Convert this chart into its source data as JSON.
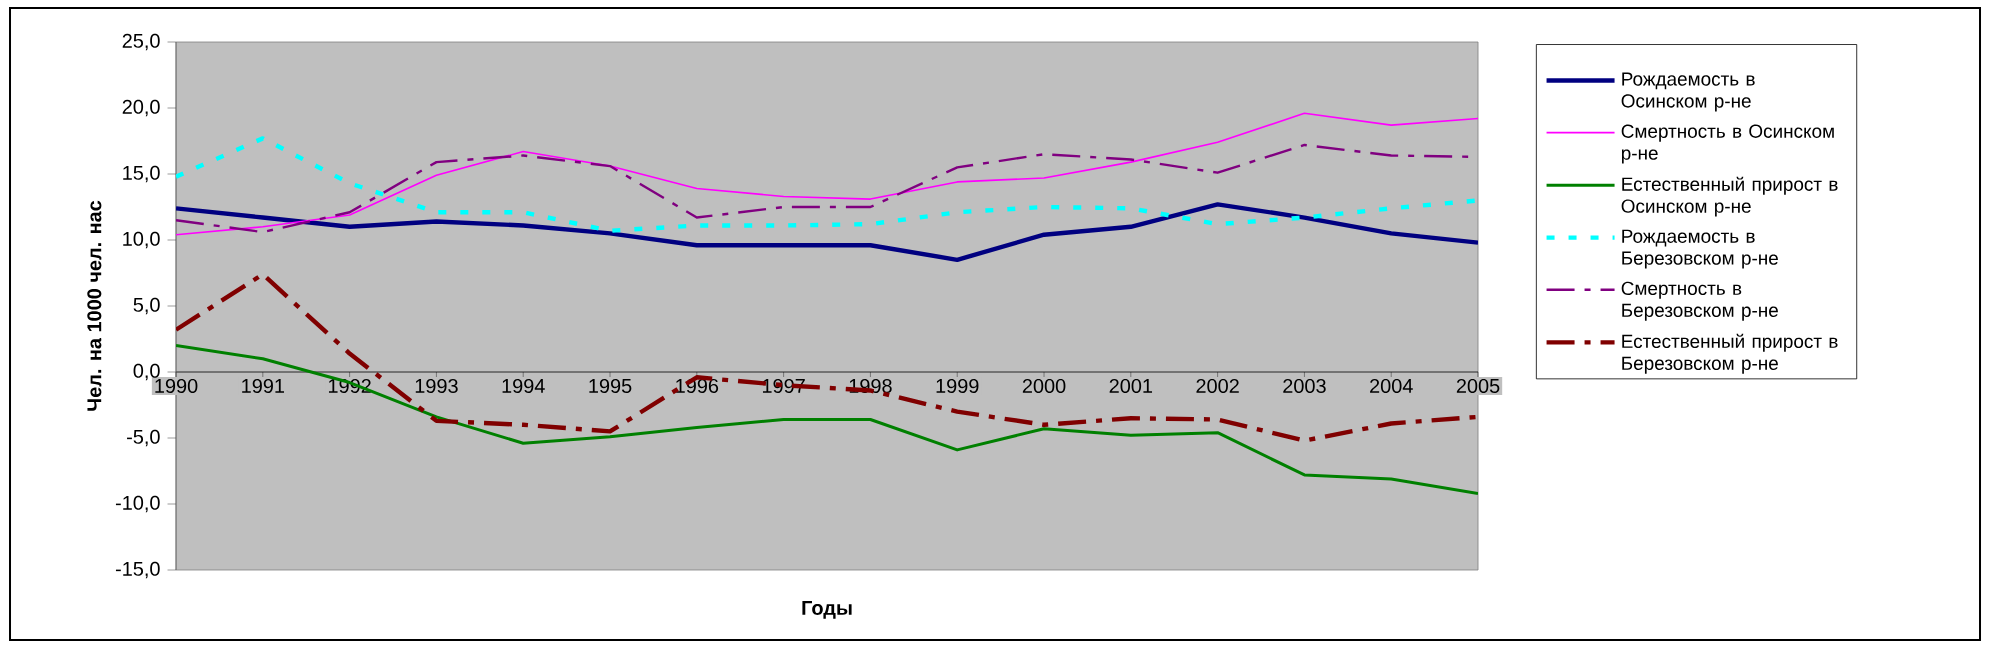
{
  "chart_data": {
    "type": "line",
    "xlabel": "Годы",
    "ylabel": "Чел. на 1000 чел. нас",
    "x": [
      1990,
      1991,
      1992,
      1993,
      1994,
      1995,
      1996,
      1997,
      1998,
      1999,
      2000,
      2001,
      2002,
      2003,
      2004,
      2005
    ],
    "xlim": [
      1990,
      2005
    ],
    "xticks": [
      1990,
      1991,
      1992,
      1993,
      1994,
      1995,
      1996,
      1997,
      1998,
      1999,
      2000,
      2001,
      2002,
      2003,
      2004,
      2005
    ],
    "ylim": [
      -15,
      25
    ],
    "yticks": [
      {
        "value": -15,
        "label": "-15,0"
      },
      {
        "value": -10,
        "label": "-10,0"
      },
      {
        "value": -5,
        "label": "-5,0"
      },
      {
        "value": 0,
        "label": "0,0"
      },
      {
        "value": 5,
        "label": "5,0"
      },
      {
        "value": 10,
        "label": "10,0"
      },
      {
        "value": 15,
        "label": "15,0"
      },
      {
        "value": 20,
        "label": "20,0"
      },
      {
        "value": 25,
        "label": "25,0"
      }
    ],
    "legend": "right",
    "marker": "none",
    "series": [
      {
        "name": "Рождаемость в Осинском р-не",
        "color": "#000080",
        "line_style": "solid",
        "values": [
          12.4,
          11.7,
          11.0,
          11.4,
          11.1,
          10.5,
          9.6,
          9.6,
          9.6,
          8.5,
          10.4,
          11.0,
          12.7,
          11.7,
          10.5,
          9.8
        ]
      },
      {
        "name": "Смертность в Осинском р-не",
        "color": "#ff00ff",
        "line_style": "solid",
        "values": [
          10.4,
          11.0,
          11.9,
          14.9,
          16.7,
          15.6,
          13.9,
          13.3,
          13.1,
          14.4,
          14.7,
          15.9,
          17.4,
          19.6,
          18.7,
          19.2
        ]
      },
      {
        "name": "Естественный прирост в Осинском р-не",
        "color": "#008000",
        "line_style": "solid",
        "values": [
          2.0,
          1.0,
          -0.8,
          -3.4,
          -5.4,
          -4.9,
          -4.2,
          -3.6,
          -3.6,
          -5.9,
          -4.3,
          -4.8,
          -4.6,
          -7.8,
          -8.1,
          -9.2
        ]
      },
      {
        "name": "Рождаемость в Березовском р-не",
        "color": "#00ffff",
        "line_style": "dotted",
        "values": [
          14.8,
          17.7,
          14.3,
          12.1,
          12.1,
          10.7,
          11.1,
          11.1,
          11.2,
          12.1,
          12.5,
          12.4,
          11.2,
          11.7,
          12.4,
          13.0
        ]
      },
      {
        "name": "Смертность в Березовском р-не",
        "color": "#800080",
        "line_style": "dashed",
        "values": [
          11.5,
          10.6,
          12.1,
          15.9,
          16.4,
          15.6,
          11.7,
          12.5,
          12.5,
          15.5,
          16.5,
          16.1,
          15.1,
          17.2,
          16.4,
          16.3
        ]
      },
      {
        "name": "Естественный прирост в Березовском р-не",
        "color": "#800000",
        "line_style": "dashed",
        "values": [
          3.2,
          7.4,
          1.4,
          -3.7,
          -4.0,
          -4.5,
          -0.4,
          -1.0,
          -1.4,
          -3.0,
          -4.0,
          -3.5,
          -3.6,
          -5.2,
          -3.9,
          -3.4
        ]
      }
    ]
  }
}
